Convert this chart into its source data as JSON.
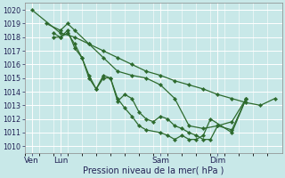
{
  "background_color": "#c8e8e8",
  "grid_color": "#ffffff",
  "line_color": "#2d6a2d",
  "marker_color": "#2d6a2d",
  "title": "Pression niveau de la mer( hPa )",
  "ylabel_ticks": [
    1010,
    1011,
    1012,
    1013,
    1014,
    1015,
    1016,
    1017,
    1018,
    1019,
    1020
  ],
  "ylim": [
    1009.5,
    1020.5
  ],
  "x_tick_labels": [
    "Ven",
    "Lun",
    "Sam",
    "Dim"
  ],
  "x_tick_positions": [
    0,
    2,
    9,
    13
  ],
  "xlim": [
    -0.5,
    17.5
  ],
  "series": [
    {
      "x": [
        0,
        2,
        3,
        4,
        5,
        6,
        7,
        8,
        9,
        10,
        11,
        12,
        13,
        14,
        15,
        16,
        17
      ],
      "y": [
        1020.0,
        1018.3,
        1018.0,
        1017.5,
        1017.0,
        1016.5,
        1016.0,
        1015.5,
        1015.2,
        1014.8,
        1014.5,
        1014.2,
        1013.8,
        1013.5,
        1013.2,
        1013.0,
        1013.5
      ]
    },
    {
      "x": [
        1,
        2,
        2.5,
        3,
        4,
        5,
        6,
        7,
        8,
        9,
        10,
        11,
        12,
        13,
        14,
        15
      ],
      "y": [
        1019.0,
        1018.5,
        1019.0,
        1018.5,
        1017.5,
        1016.5,
        1015.5,
        1015.2,
        1015.0,
        1014.5,
        1013.5,
        1011.5,
        1011.3,
        1011.5,
        1011.8,
        1013.5
      ]
    },
    {
      "x": [
        1.5,
        2,
        2.5,
        3,
        3.5,
        4,
        4.5,
        5,
        5.5,
        6,
        6.5,
        7,
        7.5,
        8,
        8.5,
        9,
        9.5,
        10,
        10.5,
        11,
        11.5,
        12,
        12.5,
        13,
        14,
        15
      ],
      "y": [
        1018.3,
        1018.0,
        1018.5,
        1017.2,
        1016.5,
        1015.2,
        1014.2,
        1015.2,
        1015.0,
        1013.3,
        1013.8,
        1013.5,
        1012.5,
        1012.0,
        1011.8,
        1012.2,
        1012.0,
        1011.5,
        1011.3,
        1011.0,
        1010.8,
        1010.5,
        1010.5,
        1011.5,
        1011.2,
        1013.5
      ]
    },
    {
      "x": [
        1.5,
        2,
        2.5,
        3,
        3.5,
        4,
        4.5,
        5,
        5.5,
        6,
        6.5,
        7,
        7.5,
        8,
        9,
        9.5,
        10,
        10.5,
        11,
        11.5,
        12,
        12.5,
        14,
        15
      ],
      "y": [
        1018.0,
        1018.0,
        1018.3,
        1017.5,
        1016.5,
        1015.0,
        1014.2,
        1015.0,
        1015.0,
        1013.5,
        1012.8,
        1012.2,
        1011.5,
        1011.2,
        1011.0,
        1010.8,
        1010.5,
        1010.8,
        1010.5,
        1010.5,
        1010.8,
        1012.0,
        1011.0,
        1013.5
      ]
    }
  ],
  "vlines": [
    0,
    2,
    9,
    13
  ]
}
